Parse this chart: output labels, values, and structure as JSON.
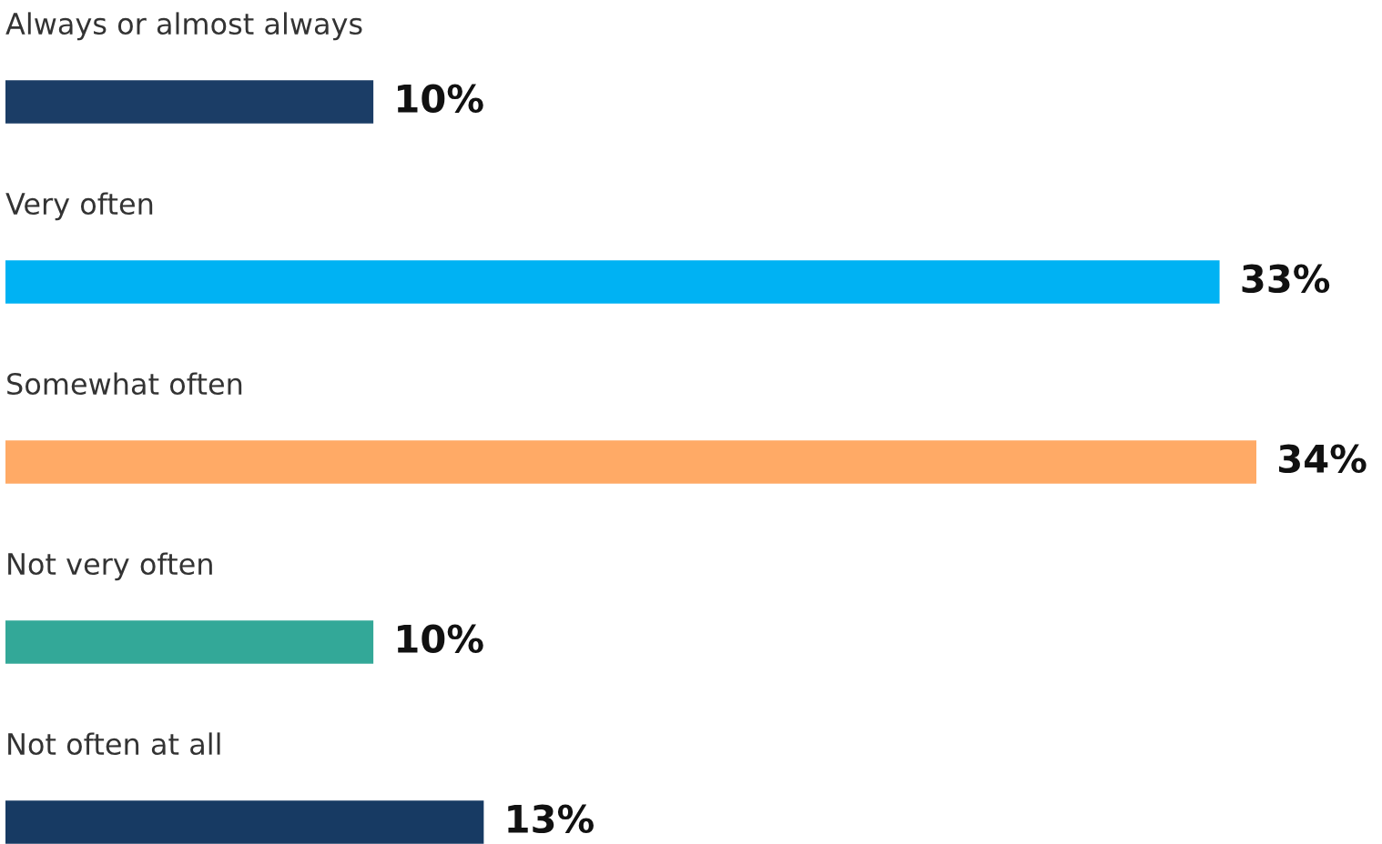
{
  "chart_data": {
    "type": "bar",
    "orientation": "horizontal",
    "categories": [
      "Always or almost always",
      "Very often",
      "Somewhat often",
      "Not very often",
      "Not often at all"
    ],
    "values": [
      10,
      33,
      34,
      10,
      13
    ],
    "colors": [
      "#1b3d66",
      "#00b2f3",
      "#ffaa66",
      "#33a898",
      "#173a63"
    ],
    "value_labels": [
      "10%",
      "33%",
      "34%",
      "10%",
      "13%"
    ]
  }
}
